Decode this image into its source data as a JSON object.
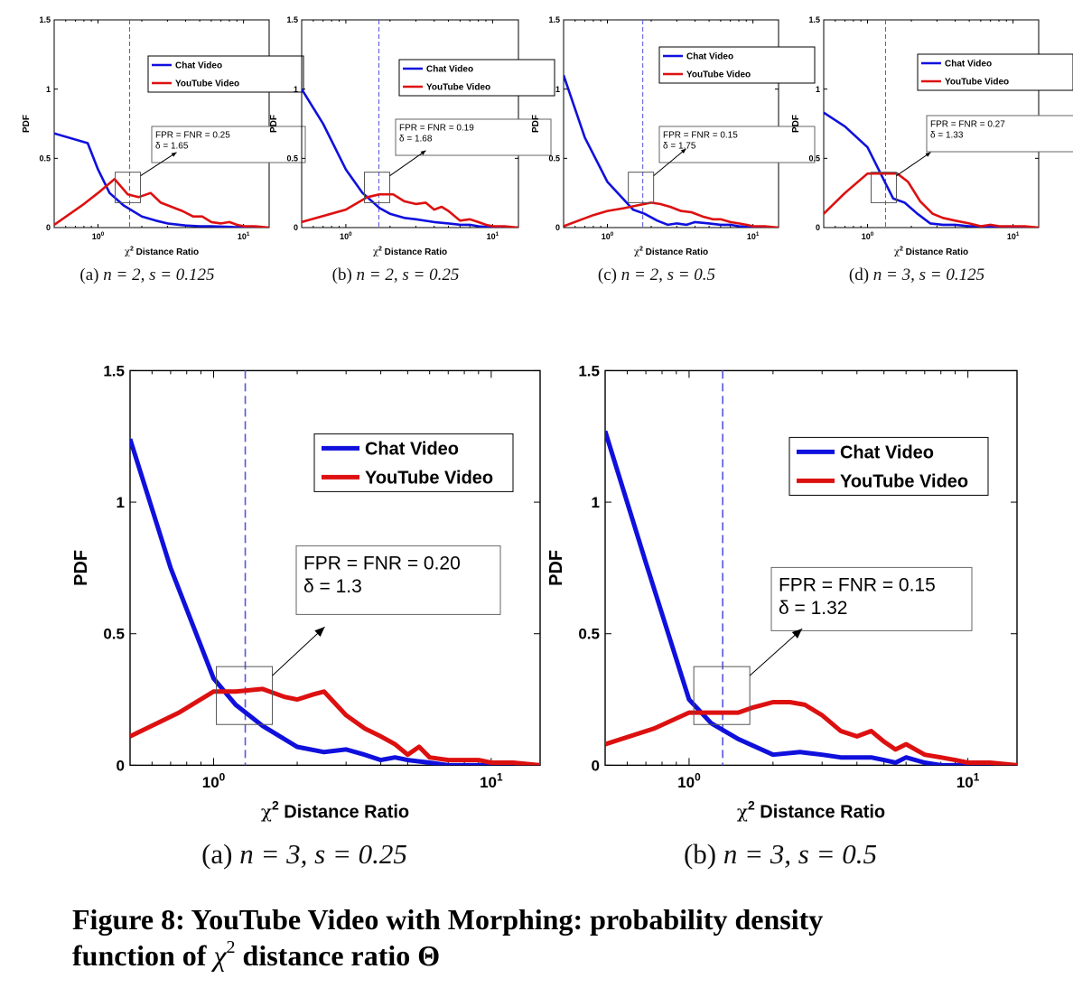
{
  "chart_data": [
    {
      "id": "a-small",
      "type": "line",
      "title": "",
      "caption_label": "(a)",
      "caption_params": "n = 2, s = 0.125",
      "xlabel_chi": "χ",
      "xlabel_sup": "2",
      "xlabel_text": "Distance Ratio",
      "ylabel": "PDF",
      "xscale": "log",
      "xlim": [
        0.5,
        15
      ],
      "ylim": [
        0,
        1.5
      ],
      "yticks": [
        "0",
        "0.5",
        "1",
        "1.5"
      ],
      "xticks": [
        {
          "base": "10",
          "exp": "0",
          "value": 1
        },
        {
          "base": "10",
          "exp": "1",
          "value": 10
        }
      ],
      "threshold": 1.65,
      "legend": {
        "placement": "top-right",
        "entries": [
          "Chat Video",
          "YouTube Video"
        ]
      },
      "annotation": {
        "line1": "FPR = FNR = 0.25",
        "line2": "δ = 1.65"
      },
      "series": [
        {
          "name": "Chat Video",
          "color": "#1010dd",
          "x": [
            0.5,
            0.85,
            1.0,
            1.2,
            1.5,
            2.0,
            2.5,
            3.0,
            4.0,
            5.0,
            6.0,
            8.0,
            10,
            12,
            15
          ],
          "y": [
            0.68,
            0.61,
            0.42,
            0.25,
            0.16,
            0.08,
            0.05,
            0.03,
            0.015,
            0.01,
            0.01,
            0.005,
            0,
            0,
            0
          ]
        },
        {
          "name": "YouTube Video",
          "color": "#dd1010",
          "x": [
            0.5,
            0.8,
            1.0,
            1.3,
            1.6,
            1.9,
            2.3,
            2.7,
            3.2,
            3.8,
            4.5,
            5.2,
            6.0,
            7.0,
            8.0,
            9.0,
            10,
            12,
            15
          ],
          "y": [
            0.02,
            0.17,
            0.25,
            0.35,
            0.24,
            0.22,
            0.25,
            0.18,
            0.15,
            0.12,
            0.08,
            0.08,
            0.04,
            0.03,
            0.04,
            0.02,
            0.01,
            0.01,
            0.0
          ]
        }
      ]
    },
    {
      "id": "b-small",
      "type": "line",
      "caption_label": "(b)",
      "caption_params": "n = 2, s = 0.25",
      "xlabel_chi": "χ",
      "xlabel_sup": "2",
      "xlabel_text": "Distance Ratio",
      "ylabel": "PDF",
      "xscale": "log",
      "xlim": [
        0.5,
        15
      ],
      "ylim": [
        0,
        1.5
      ],
      "yticks": [
        "0",
        "0.5",
        "1",
        "1.5"
      ],
      "xticks": [
        {
          "base": "10",
          "exp": "0",
          "value": 1
        },
        {
          "base": "10",
          "exp": "1",
          "value": 10
        }
      ],
      "threshold": 1.68,
      "legend": {
        "placement": "top-right",
        "entries": [
          "Chat Video",
          "YouTube Video"
        ]
      },
      "annotation": {
        "line1": "FPR = FNR = 0.19",
        "line2": "δ = 1.68"
      },
      "series": [
        {
          "name": "Chat Video",
          "color": "#1010dd",
          "x": [
            0.5,
            0.7,
            1.0,
            1.3,
            1.7,
            2.0,
            2.5,
            3.0,
            4.0,
            5.0,
            6.0,
            7.0,
            8.0,
            10,
            12,
            15
          ],
          "y": [
            1.0,
            0.75,
            0.42,
            0.25,
            0.14,
            0.1,
            0.07,
            0.06,
            0.04,
            0.03,
            0.02,
            0.02,
            0.01,
            0,
            0,
            0
          ]
        },
        {
          "name": "YouTube Video",
          "color": "#dd1010",
          "x": [
            0.5,
            1.0,
            1.4,
            1.7,
            2.1,
            2.5,
            3.0,
            3.5,
            4.0,
            4.5,
            5.0,
            6.0,
            7.0,
            8.0,
            9.0,
            10,
            12,
            15
          ],
          "y": [
            0.04,
            0.13,
            0.22,
            0.24,
            0.24,
            0.19,
            0.17,
            0.18,
            0.13,
            0.15,
            0.12,
            0.05,
            0.06,
            0.04,
            0.02,
            0.01,
            0.01,
            0.0
          ]
        }
      ]
    },
    {
      "id": "c-small",
      "type": "line",
      "caption_label": "(c)",
      "caption_params": "n = 2, s = 0.5",
      "xlabel_chi": "χ",
      "xlabel_sup": "2",
      "xlabel_text": "Distance Ratio",
      "ylabel": "PDF",
      "xscale": "log",
      "xlim": [
        0.5,
        15
      ],
      "ylim": [
        0,
        1.5
      ],
      "yticks": [
        "0",
        "0.5",
        "1",
        "1.5"
      ],
      "xticks": [
        {
          "base": "10",
          "exp": "0",
          "value": 1
        },
        {
          "base": "10",
          "exp": "1",
          "value": 10
        }
      ],
      "threshold": 1.75,
      "legend": {
        "placement": "top-right",
        "entries": [
          "Chat Video",
          "YouTube Video"
        ]
      },
      "annotation": {
        "line1": "FPR = FNR = 0.15",
        "line2": "δ = 1.75"
      },
      "series": [
        {
          "name": "Chat Video",
          "color": "#1010dd",
          "x": [
            0.5,
            0.7,
            1.0,
            1.3,
            1.5,
            1.8,
            2.2,
            2.6,
            3.0,
            3.5,
            4.0,
            5.0,
            6.0,
            7.0,
            8.0,
            10,
            12,
            15
          ],
          "y": [
            1.1,
            0.65,
            0.33,
            0.2,
            0.13,
            0.1,
            0.05,
            0.02,
            0.03,
            0.02,
            0.04,
            0.03,
            0.02,
            0.02,
            0.01,
            0,
            0,
            0
          ]
        },
        {
          "name": "YouTube Video",
          "color": "#dd1010",
          "x": [
            0.5,
            0.8,
            1.0,
            1.3,
            1.6,
            2.0,
            2.3,
            2.7,
            3.2,
            3.8,
            4.5,
            5.3,
            6.0,
            7.0,
            8.0,
            9.0,
            10,
            12,
            15
          ],
          "y": [
            0.01,
            0.09,
            0.12,
            0.14,
            0.16,
            0.18,
            0.17,
            0.15,
            0.12,
            0.11,
            0.08,
            0.06,
            0.06,
            0.04,
            0.03,
            0.02,
            0.01,
            0.01,
            0.0
          ]
        }
      ]
    },
    {
      "id": "d-small",
      "type": "line",
      "caption_label": "(d)",
      "caption_params": "n = 3, s = 0.125",
      "xlabel_chi": "χ",
      "xlabel_sup": "2",
      "xlabel_text": "Distance Ratio",
      "ylabel": "PDF",
      "xscale": "log",
      "xlim": [
        0.5,
        15
      ],
      "ylim": [
        0,
        1.5
      ],
      "yticks": [
        "0",
        "0.5",
        "1",
        "1.5"
      ],
      "xticks": [
        {
          "base": "10",
          "exp": "0",
          "value": 1
        },
        {
          "base": "10",
          "exp": "1",
          "value": 10
        }
      ],
      "threshold": 1.33,
      "legend": {
        "placement": "top-right",
        "entries": [
          "Chat Video",
          "YouTube Video"
        ]
      },
      "annotation": {
        "line1": "FPR = FNR = 0.27",
        "line2": "δ = 1.33"
      },
      "series": [
        {
          "name": "Chat Video",
          "color": "#1010dd",
          "x": [
            0.5,
            0.7,
            1.0,
            1.3,
            1.5,
            1.8,
            2.2,
            2.7,
            3.3,
            4.0,
            5.0,
            6.0,
            8.0,
            10,
            12,
            15
          ],
          "y": [
            0.83,
            0.73,
            0.58,
            0.34,
            0.21,
            0.18,
            0.1,
            0.03,
            0.02,
            0.02,
            0.01,
            0.01,
            0.0,
            0,
            0,
            0
          ]
        },
        {
          "name": "YouTube Video",
          "color": "#dd1010",
          "x": [
            0.5,
            0.7,
            1.0,
            1.3,
            1.6,
            1.9,
            2.3,
            2.8,
            3.3,
            4.0,
            5.0,
            6.0,
            7.0,
            8.0,
            10,
            12,
            15
          ],
          "y": [
            0.1,
            0.25,
            0.39,
            0.39,
            0.39,
            0.33,
            0.19,
            0.1,
            0.07,
            0.05,
            0.03,
            0.01,
            0.02,
            0.01,
            0.01,
            0.01,
            0.0
          ]
        }
      ]
    },
    {
      "id": "a-large",
      "type": "line",
      "caption_label": "(a)",
      "caption_params": "n = 3, s = 0.25",
      "xlabel_chi": "χ",
      "xlabel_sup": "2",
      "xlabel_text": "Distance Ratio",
      "ylabel": "PDF",
      "xscale": "log",
      "xlim": [
        0.5,
        15
      ],
      "ylim": [
        0,
        1.5
      ],
      "yticks": [
        "0",
        "0.5",
        "1",
        "1.5"
      ],
      "xticks": [
        {
          "base": "10",
          "exp": "0",
          "value": 1
        },
        {
          "base": "10",
          "exp": "1",
          "value": 10
        }
      ],
      "threshold": 1.3,
      "legend": {
        "placement": "top-right",
        "entries": [
          "Chat Video",
          "YouTube Video"
        ]
      },
      "annotation": {
        "line1": "FPR = FNR = 0.20",
        "line2": "δ = 1.3"
      },
      "series": [
        {
          "name": "Chat Video",
          "color": "#1010dd",
          "x": [
            0.5,
            0.7,
            1.0,
            1.2,
            1.5,
            2.0,
            2.5,
            3.0,
            3.5,
            4.0,
            4.5,
            5.0,
            6.0,
            7.0,
            8.0,
            10,
            12,
            15
          ],
          "y": [
            1.24,
            0.75,
            0.33,
            0.23,
            0.15,
            0.07,
            0.05,
            0.06,
            0.04,
            0.02,
            0.03,
            0.02,
            0.01,
            0.0,
            0.0,
            0.0,
            0.0,
            0.0
          ]
        },
        {
          "name": "YouTube Video",
          "color": "#dd1010",
          "x": [
            0.5,
            0.75,
            1.0,
            1.2,
            1.5,
            1.8,
            2.0,
            2.3,
            2.5,
            3.0,
            3.5,
            4.0,
            4.5,
            5.0,
            5.5,
            6.0,
            7.0,
            8.0,
            9.0,
            10,
            12,
            15
          ],
          "y": [
            0.11,
            0.2,
            0.28,
            0.28,
            0.29,
            0.26,
            0.25,
            0.27,
            0.28,
            0.19,
            0.14,
            0.11,
            0.08,
            0.04,
            0.07,
            0.03,
            0.02,
            0.02,
            0.02,
            0.01,
            0.01,
            0.0
          ]
        }
      ]
    },
    {
      "id": "b-large",
      "type": "line",
      "caption_label": "(b)",
      "caption_params": "n = 3, s = 0.5",
      "xlabel_chi": "χ",
      "xlabel_sup": "2",
      "xlabel_text": "Distance Ratio",
      "ylabel": "PDF",
      "xscale": "log",
      "xlim": [
        0.5,
        15
      ],
      "ylim": [
        0,
        1.5
      ],
      "yticks": [
        "0",
        "0.5",
        "1",
        "1.5"
      ],
      "xticks": [
        {
          "base": "10",
          "exp": "0",
          "value": 1
        },
        {
          "base": "10",
          "exp": "1",
          "value": 10
        }
      ],
      "threshold": 1.32,
      "legend": {
        "placement": "top-right",
        "entries": [
          "Chat Video",
          "YouTube Video"
        ]
      },
      "annotation": {
        "line1": "FPR = FNR = 0.15",
        "line2": "δ = 1.32"
      },
      "series": [
        {
          "name": "Chat Video",
          "color": "#1010dd",
          "x": [
            0.5,
            0.7,
            1.0,
            1.2,
            1.5,
            2.0,
            2.5,
            3.0,
            3.5,
            4.0,
            4.5,
            5.0,
            5.5,
            6.0,
            7.0,
            8.0,
            10,
            12,
            15
          ],
          "y": [
            1.27,
            0.77,
            0.25,
            0.16,
            0.1,
            0.04,
            0.05,
            0.04,
            0.03,
            0.03,
            0.03,
            0.02,
            0.01,
            0.03,
            0.01,
            0.0,
            0.0,
            0.0,
            0.0
          ]
        },
        {
          "name": "YouTube Video",
          "color": "#dd1010",
          "x": [
            0.5,
            0.75,
            1.0,
            1.2,
            1.5,
            1.7,
            2.0,
            2.3,
            2.6,
            3.0,
            3.5,
            4.0,
            4.5,
            5.0,
            5.5,
            6.0,
            7.0,
            8.0,
            9.0,
            10,
            12,
            15
          ],
          "y": [
            0.08,
            0.14,
            0.2,
            0.2,
            0.2,
            0.22,
            0.24,
            0.24,
            0.23,
            0.19,
            0.13,
            0.11,
            0.13,
            0.09,
            0.06,
            0.08,
            0.04,
            0.03,
            0.02,
            0.01,
            0.01,
            0.0
          ]
        }
      ]
    }
  ],
  "figure_caption": {
    "line1": "Figure 8: YouTube Video with Morphing: probability density",
    "line2_before": "function of ",
    "line2_chi": "χ",
    "line2_sup": "2",
    "line2_after": " distance ratio Θ"
  }
}
